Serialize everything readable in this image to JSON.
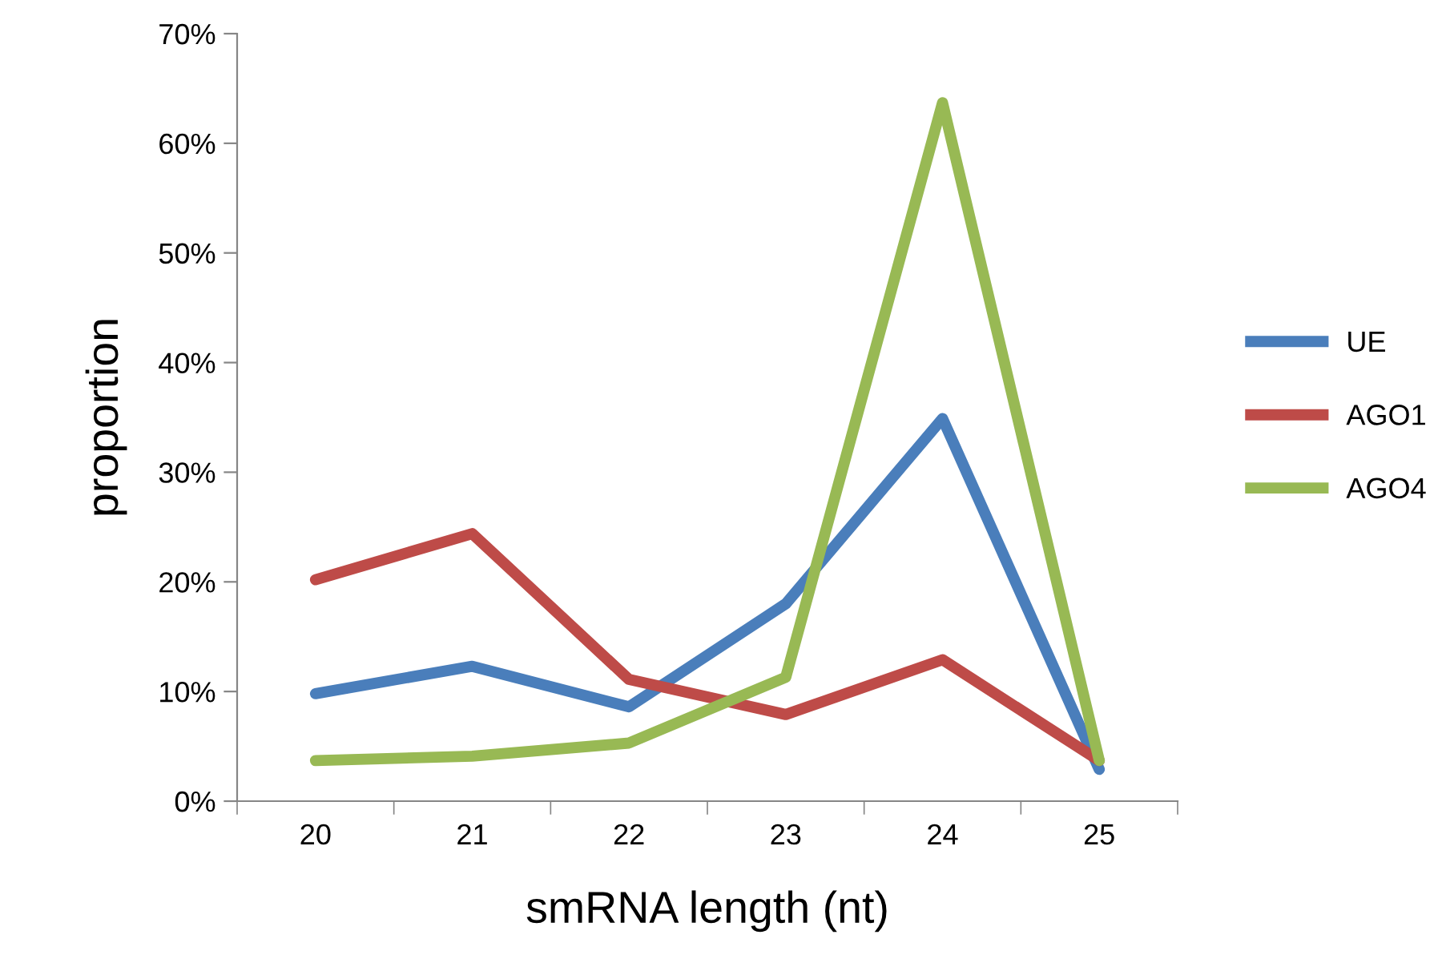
{
  "chart_data": {
    "type": "line",
    "xlabel": "smRNA length (nt)",
    "ylabel": "proportion",
    "categories": [
      "20",
      "21",
      "22",
      "23",
      "24",
      "25"
    ],
    "series": [
      {
        "name": "UE",
        "color": "#4a7ebb",
        "values": [
          9.8,
          12.3,
          8.6,
          18.0,
          34.9,
          2.9
        ]
      },
      {
        "name": "AGO1",
        "color": "#be4b48",
        "values": [
          20.2,
          24.4,
          11.1,
          7.9,
          12.9,
          3.7
        ]
      },
      {
        "name": "AGO4",
        "color": "#98b954",
        "values": [
          3.7,
          4.1,
          5.3,
          11.3,
          63.7,
          3.7
        ]
      }
    ],
    "ylim": [
      0,
      70
    ],
    "yticks": [
      {
        "value": 0,
        "label": "0%"
      },
      {
        "value": 10,
        "label": "10%"
      },
      {
        "value": 20,
        "label": "20%"
      },
      {
        "value": 30,
        "label": "30%"
      },
      {
        "value": 40,
        "label": "40%"
      },
      {
        "value": 50,
        "label": "50%"
      },
      {
        "value": 60,
        "label": "60%"
      },
      {
        "value": 70,
        "label": "70%"
      }
    ],
    "grid": false,
    "legend": "right",
    "marker": "none",
    "line_style": "solid"
  }
}
